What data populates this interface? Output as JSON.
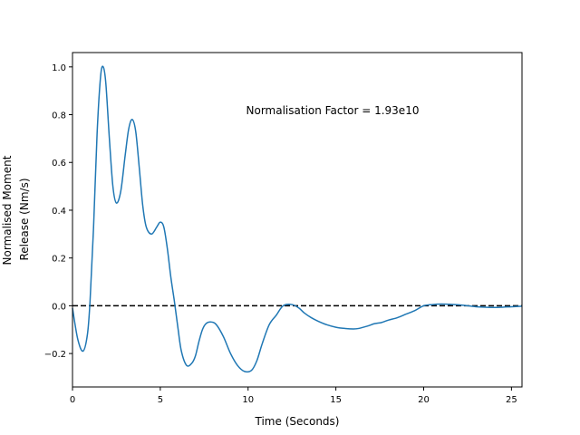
{
  "chart_data": {
    "type": "line",
    "title": "",
    "xlabel": "Time (Seconds)",
    "ylabel_lines": [
      "Normalised Moment",
      "Release (Nm/s)"
    ],
    "xlim": [
      0,
      25.6
    ],
    "ylim": [
      -0.34,
      1.06
    ],
    "xticks": [
      0,
      5,
      10,
      15,
      20,
      25
    ],
    "xtick_labels": [
      "0",
      "5",
      "10",
      "15",
      "20",
      "25"
    ],
    "yticks": [
      -0.2,
      0.0,
      0.2,
      0.4,
      0.6,
      0.8,
      1.0
    ],
    "ytick_labels": [
      "−0.2",
      "0.0",
      "0.2",
      "0.4",
      "0.6",
      "0.8",
      "1.0"
    ],
    "grid": false,
    "annotation": "Normalisation Factor = 1.93e10",
    "reference_line": {
      "y": 0,
      "style": "dashed",
      "color": "#000000"
    },
    "colors": {
      "series": "#1f77b4"
    },
    "series": [
      {
        "x": [
          0,
          0.3,
          0.6,
          0.85,
          1.0,
          1.2,
          1.4,
          1.6,
          1.75,
          1.9,
          2.1,
          2.3,
          2.5,
          2.75,
          3.0,
          3.2,
          3.4,
          3.6,
          3.8,
          4.0,
          4.2,
          4.5,
          4.8,
          5.0,
          5.2,
          5.4,
          5.6,
          5.8,
          6.0,
          6.2,
          6.5,
          6.8,
          7.0,
          7.2,
          7.4,
          7.6,
          7.9,
          8.2,
          8.6,
          9.0,
          9.4,
          9.8,
          10.2,
          10.5,
          10.8,
          11.2,
          11.6,
          12.0,
          12.5,
          12.9,
          13.2,
          13.6,
          14.0,
          14.5,
          15.0,
          15.5,
          16.0,
          16.3,
          16.8,
          17.2,
          17.6,
          18.0,
          18.5,
          19.0,
          19.5,
          20.0,
          20.5,
          21.0,
          21.5,
          22.0,
          22.5,
          23.0,
          23.5,
          24.0,
          24.5,
          25.0,
          25.6
        ],
        "y": [
          -0.01,
          -0.14,
          -0.19,
          -0.12,
          0.02,
          0.33,
          0.72,
          0.96,
          1.0,
          0.93,
          0.7,
          0.5,
          0.43,
          0.48,
          0.63,
          0.74,
          0.78,
          0.73,
          0.58,
          0.42,
          0.33,
          0.3,
          0.33,
          0.35,
          0.33,
          0.24,
          0.12,
          0.02,
          -0.09,
          -0.19,
          -0.25,
          -0.24,
          -0.21,
          -0.15,
          -0.1,
          -0.075,
          -0.068,
          -0.08,
          -0.13,
          -0.2,
          -0.25,
          -0.275,
          -0.27,
          -0.23,
          -0.16,
          -0.08,
          -0.04,
          0.0,
          0.005,
          -0.01,
          -0.03,
          -0.05,
          -0.065,
          -0.08,
          -0.09,
          -0.095,
          -0.097,
          -0.095,
          -0.085,
          -0.075,
          -0.07,
          -0.06,
          -0.05,
          -0.035,
          -0.02,
          0.0,
          0.005,
          0.007,
          0.006,
          0.004,
          0.0,
          -0.004,
          -0.006,
          -0.007,
          -0.006,
          -0.004,
          -0.002
        ]
      }
    ]
  }
}
